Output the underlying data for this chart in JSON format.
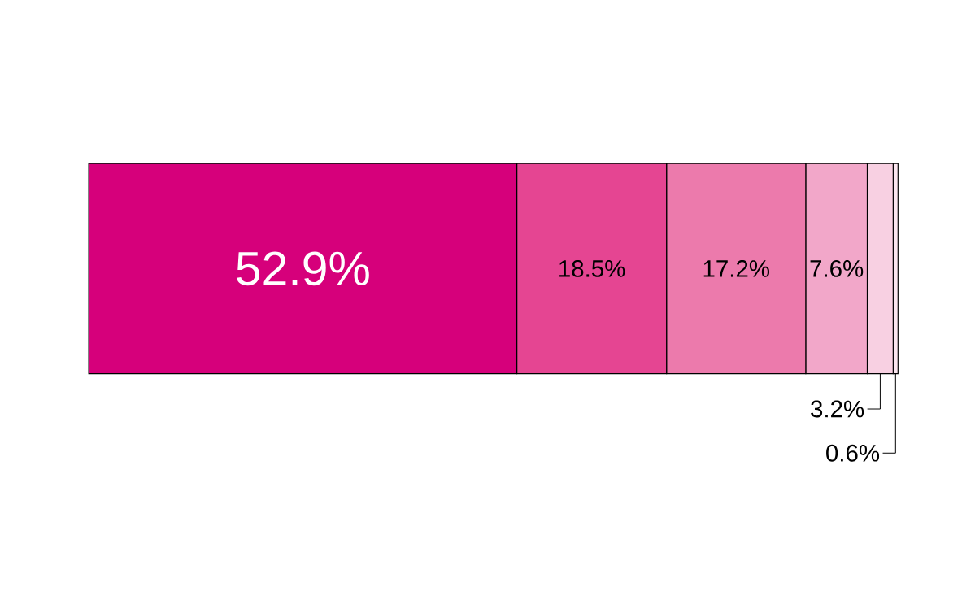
{
  "chart_data": {
    "type": "bar",
    "orientation": "horizontal",
    "stacked": true,
    "categories": [
      null
    ],
    "series": [
      {
        "color": "#d6007b",
        "values": [
          52.9
        ],
        "value_labels": [
          "52.9%"
        ]
      },
      {
        "color": "#e54592",
        "values": [
          18.5
        ],
        "value_labels": [
          "18.5%"
        ]
      },
      {
        "color": "#ec7aac",
        "values": [
          17.2
        ],
        "value_labels": [
          "17.2%"
        ]
      },
      {
        "color": "#f2a7c9",
        "values": [
          7.6
        ],
        "value_labels": [
          "7.6%"
        ]
      },
      {
        "color": "#f8d0e2",
        "values": [
          3.2
        ],
        "value_labels": [
          "3.2%"
        ]
      },
      {
        "color": "#fbe6ef",
        "values": [
          0.6
        ],
        "value_labels": [
          "0.6%"
        ]
      }
    ]
  }
}
